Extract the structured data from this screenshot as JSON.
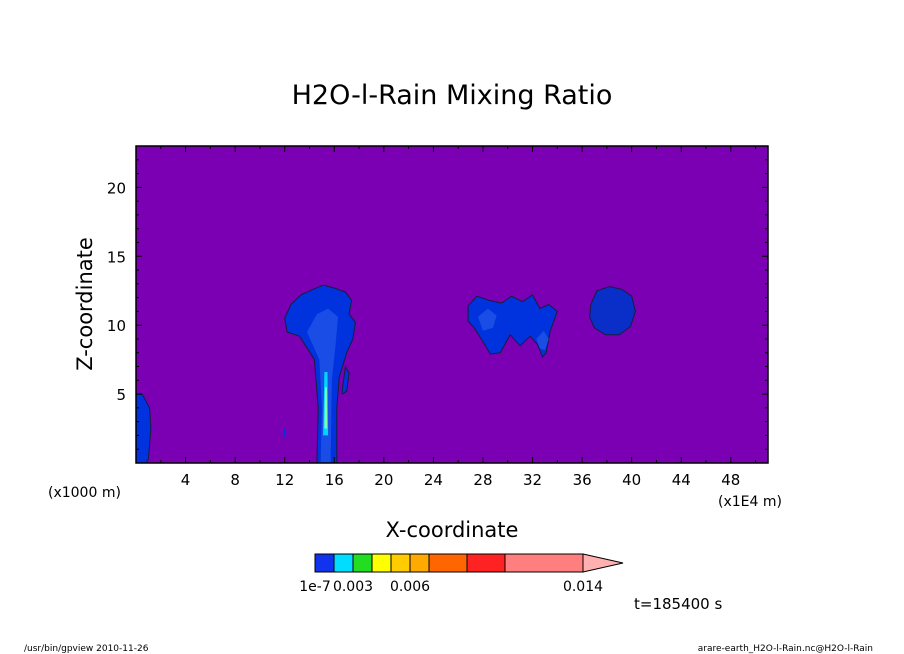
{
  "chart_data": {
    "type": "contour",
    "title": "H2O-l-Rain Mixing Ratio",
    "xlabel": "X-coordinate",
    "ylabel": "Z-coordinate",
    "x_unit_left": "(x1000 m)",
    "x_unit_right": "(x1E4 m)",
    "xlim": [
      0,
      51
    ],
    "ylim": [
      0,
      23
    ],
    "x_ticks": [
      4,
      8,
      12,
      16,
      20,
      24,
      28,
      32,
      36,
      40,
      44,
      48
    ],
    "y_ticks": [
      5,
      10,
      15,
      20
    ],
    "background_color": "#7b00b3",
    "colors": {
      "contour_line": "#1a1a40",
      "level_low": "#0033dd",
      "level_mid": "#1a4de6",
      "level_core": "#00d5ff",
      "level_peak": "#7dffb0"
    },
    "regions": [
      {
        "name": "left-edge-column",
        "x_range": [
          0,
          1.2
        ],
        "z_range": [
          0,
          5
        ]
      },
      {
        "name": "main-column",
        "x_range": [
          12,
          18
        ],
        "z_range": [
          0,
          12.8
        ]
      },
      {
        "name": "anvil-cloud",
        "x_range": [
          26.8,
          34
        ],
        "z_range": [
          7.5,
          12.2
        ]
      },
      {
        "name": "isolated-blob",
        "x_range": [
          36.6,
          40.3
        ],
        "z_range": [
          9.3,
          12.8
        ]
      }
    ],
    "colorbar": {
      "colors": [
        "#1133ee",
        "#00ddff",
        "#22dd22",
        "#ffff00",
        "#ffcc00",
        "#ffaa00",
        "#ff6600",
        "#ff2222",
        "#ff7f7f",
        "#ffb0b0"
      ],
      "labels": [
        "1e-7",
        "0.003",
        "0.006",
        "0.014"
      ]
    }
  },
  "time_label": "t=185400 s",
  "footer": {
    "left": "/usr/bin/gpview  2010-11-26",
    "right": "arare-earth_H2O-l-Rain.nc@H2O-l-Rain"
  }
}
